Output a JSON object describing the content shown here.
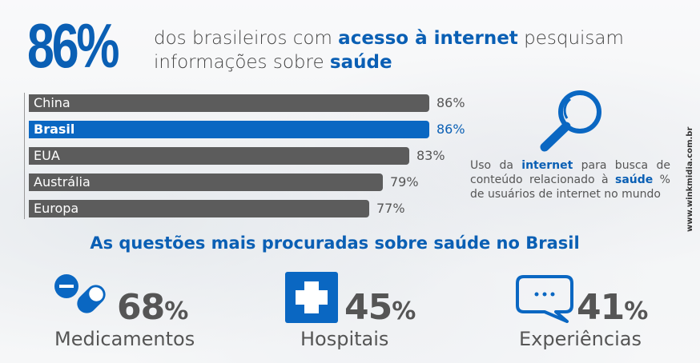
{
  "headline": {
    "big_percent": "86%",
    "line_part1": "dos brasileiros com ",
    "line_highlight1": "acesso à internet",
    "line_part2": " pesquisam informações sobre ",
    "line_highlight2": "saúde"
  },
  "bars": [
    {
      "label": "China",
      "value": 86,
      "value_label": "86%",
      "highlight": false
    },
    {
      "label": "Brasil",
      "value": 86,
      "value_label": "86%",
      "highlight": true
    },
    {
      "label": "EUA",
      "value": 83,
      "value_label": "83%",
      "highlight": false
    },
    {
      "label": "Austrália",
      "value": 79,
      "value_label": "79%",
      "highlight": false
    },
    {
      "label": "Europa",
      "value": 77,
      "value_label": "77%",
      "highlight": false
    }
  ],
  "note": {
    "part1": "Uso da ",
    "hl1": "internet",
    "part2": " para busca de conteúdo relacionado à ",
    "hl2": "saúde",
    "part3": " % de usuários de internet no mundo"
  },
  "source": "www.winkmidia.com.br",
  "subtitle": "As questões mais procuradas sobre saúde no Brasil",
  "stats": [
    {
      "icon": "pill-icon",
      "value": "68",
      "unit": "%",
      "label": "Medicamentos"
    },
    {
      "icon": "hospital-cross-icon",
      "value": "45",
      "unit": "%",
      "label": "Hospitais"
    },
    {
      "icon": "chat-bubble-icon",
      "value": "41",
      "unit": "%",
      "label": "Experiências"
    }
  ],
  "colors": {
    "accent": "#0a5fb4",
    "bar": "#5c5c5c",
    "text": "#555555"
  }
}
